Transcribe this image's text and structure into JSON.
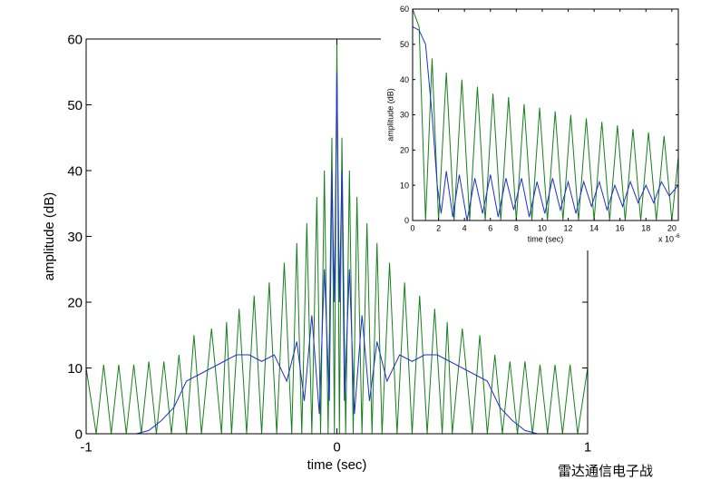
{
  "chart_data": [
    {
      "type": "line",
      "xlabel": "time (sec)",
      "ylabel": "amplitude (dB)",
      "xlim": [
        -1,
        1
      ],
      "ylim": [
        0,
        60
      ],
      "xticks": [
        -1,
        0,
        1
      ],
      "yticks": [
        0,
        10,
        20,
        30,
        40,
        50,
        60
      ],
      "series": [
        {
          "color": "#16801c",
          "x": [
            -1,
            -0.96,
            -0.93,
            -0.9,
            -0.87,
            -0.84,
            -0.81,
            -0.78,
            -0.75,
            -0.72,
            -0.69,
            -0.66,
            -0.63,
            -0.6,
            -0.57,
            -0.54,
            -0.5,
            -0.46,
            -0.44,
            -0.42,
            -0.39,
            -0.36,
            -0.33,
            -0.3,
            -0.27,
            -0.24,
            -0.21,
            -0.18,
            -0.16,
            -0.14,
            -0.12,
            -0.1,
            -0.08,
            -0.065,
            -0.05,
            -0.035,
            -0.02,
            -0.01,
            0,
            0.01,
            0.02,
            0.035,
            0.05,
            0.065,
            0.08,
            0.1,
            0.12,
            0.14,
            0.16,
            0.18,
            0.21,
            0.24,
            0.27,
            0.3,
            0.33,
            0.36,
            0.39,
            0.42,
            0.44,
            0.46,
            0.5,
            0.54,
            0.57,
            0.6,
            0.63,
            0.66,
            0.69,
            0.72,
            0.75,
            0.78,
            0.81,
            0.84,
            0.87,
            0.9,
            0.93,
            0.96,
            1
          ],
          "values": [
            10,
            0,
            10.5,
            0,
            10.5,
            0,
            10.5,
            0,
            11,
            0,
            11,
            0,
            12,
            0,
            15,
            0,
            16,
            0,
            17,
            0,
            19,
            0,
            21,
            0,
            23,
            0,
            26,
            0,
            29,
            0,
            32,
            0,
            36,
            0,
            40,
            0,
            45,
            0,
            60,
            0,
            45,
            0,
            40,
            0,
            36,
            0,
            32,
            0,
            29,
            0,
            26,
            0,
            23,
            0,
            21,
            0,
            19,
            0,
            17,
            0,
            16,
            0,
            15,
            0,
            12,
            0,
            11,
            0,
            11,
            0,
            10.5,
            0,
            10.5,
            0,
            10.5,
            0,
            10
          ]
        },
        {
          "color": "#1f2fd0",
          "x": [
            -0.8,
            -0.75,
            -0.7,
            -0.65,
            -0.6,
            -0.55,
            -0.5,
            -0.45,
            -0.4,
            -0.35,
            -0.3,
            -0.25,
            -0.2,
            -0.16,
            -0.13,
            -0.1,
            -0.07,
            -0.05,
            -0.03,
            -0.02,
            -0.01,
            0,
            0.01,
            0.02,
            0.03,
            0.05,
            0.07,
            0.1,
            0.13,
            0.16,
            0.2,
            0.25,
            0.3,
            0.35,
            0.4,
            0.45,
            0.5,
            0.55,
            0.6,
            0.65,
            0.7,
            0.75,
            0.8
          ],
          "values": [
            0,
            0.5,
            2,
            4,
            8,
            9,
            10,
            11,
            12,
            12,
            11,
            12,
            8,
            14,
            5,
            18,
            3,
            25,
            5,
            40,
            20,
            55,
            20,
            40,
            5,
            25,
            3,
            18,
            5,
            14,
            8,
            12,
            11,
            12,
            12,
            11,
            10,
            9,
            8,
            4,
            2,
            0.5,
            0
          ]
        }
      ]
    },
    {
      "type": "line",
      "xlabel": "time (sec)",
      "ylabel": "amplitude (dB)",
      "x_multiplier": "x 10",
      "x_exponent": "-6",
      "xlim": [
        0,
        20.5
      ],
      "ylim": [
        0,
        60
      ],
      "xticks": [
        0,
        2,
        4,
        6,
        8,
        10,
        12,
        14,
        16,
        18,
        20
      ],
      "yticks": [
        0,
        10,
        20,
        30,
        40,
        50,
        60
      ],
      "series": [
        {
          "color": "#16801c",
          "x": [
            0,
            0.5,
            1,
            1.5,
            2,
            2.6,
            3.2,
            3.8,
            4.4,
            5,
            5.6,
            6.2,
            6.8,
            7.4,
            8,
            8.6,
            9.2,
            9.8,
            10.4,
            11,
            11.6,
            12.2,
            12.8,
            13.4,
            14,
            14.6,
            15.2,
            15.8,
            16.4,
            17,
            17.6,
            18.2,
            18.8,
            19.4,
            20,
            20.5
          ],
          "values": [
            60,
            55,
            0,
            46,
            0,
            42,
            0,
            40,
            0,
            38,
            0,
            36,
            0,
            35,
            0,
            33,
            0,
            32,
            0,
            31,
            0,
            30,
            0,
            29,
            0,
            28,
            0,
            27,
            0,
            26,
            0,
            25,
            0,
            24,
            0,
            18
          ]
        },
        {
          "color": "#1f2fd0",
          "x": [
            0,
            0.5,
            1,
            1.5,
            1.9,
            2.2,
            2.6,
            3.1,
            3.6,
            4.2,
            4.8,
            5.4,
            6,
            6.6,
            7.2,
            7.8,
            8.4,
            9,
            9.6,
            10.2,
            10.8,
            11.4,
            12,
            12.6,
            13.2,
            13.8,
            14.4,
            15,
            15.6,
            16.2,
            16.8,
            17.4,
            18,
            18.6,
            19.2,
            19.8,
            20.5
          ],
          "values": [
            55,
            54,
            50,
            30,
            10,
            2,
            14,
            1,
            13,
            0,
            12,
            2,
            13,
            1,
            12,
            3,
            12,
            1,
            11,
            2,
            12,
            3,
            11,
            2,
            11,
            4,
            11,
            3,
            10,
            4,
            11,
            5,
            10,
            5,
            11,
            7,
            10
          ]
        }
      ]
    }
  ],
  "watermark": "雷达通信电子战"
}
